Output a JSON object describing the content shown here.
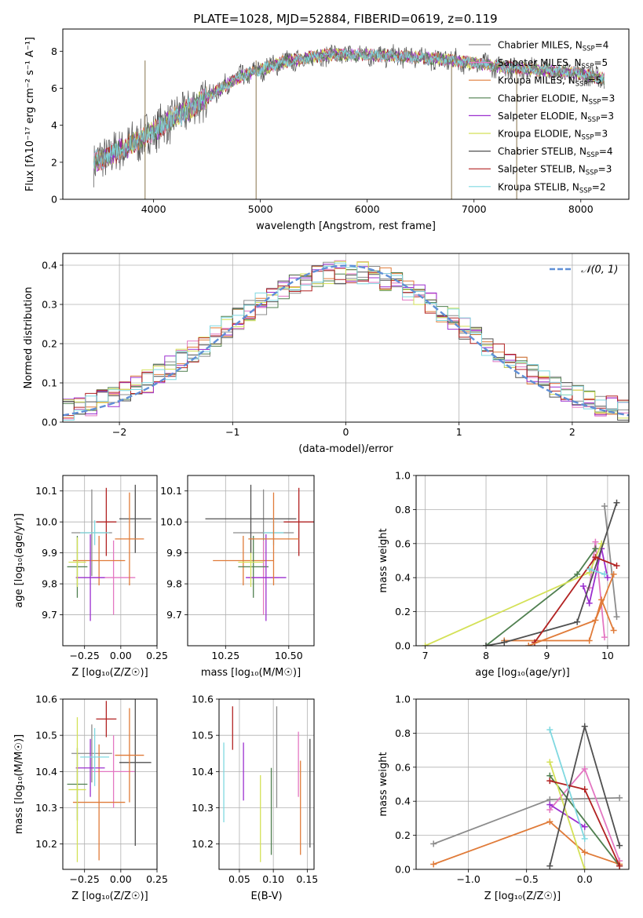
{
  "figure_title": "PLATE=1028, MJD=52884, FIBERID=0619, z=0.119",
  "models": [
    {
      "name": "Chabrier MILES",
      "nssp": "4",
      "color": "#8c8c8c"
    },
    {
      "name": "Salpeter MILES",
      "nssp": "5",
      "color": "#e377c2"
    },
    {
      "name": "Kroupa MILES",
      "nssp": "5",
      "color": "#e07b39"
    },
    {
      "name": "Chabrier ELODIE",
      "nssp": "3",
      "color": "#4f7f4f"
    },
    {
      "name": "Salpeter ELODIE",
      "nssp": "3",
      "color": "#9b2fcf"
    },
    {
      "name": "Kroupa ELODIE",
      "nssp": "3",
      "color": "#d4e157"
    },
    {
      "name": "Chabrier STELIB",
      "nssp": "4",
      "color": "#505050"
    },
    {
      "name": "Salpeter STELIB",
      "nssp": "3",
      "color": "#b22222"
    },
    {
      "name": "Kroupa STELIB",
      "nssp": "2",
      "color": "#7fd8e0"
    }
  ],
  "chart_data": [
    {
      "id": "spectrum",
      "type": "line",
      "xlabel": "wavelength [Angstrom, rest frame]",
      "ylabel": "Flux [fλ10⁻¹⁷ erg cm⁻² s⁻¹ A⁻¹]",
      "xlim": [
        3150,
        8450
      ],
      "ylim": [
        0,
        9.2
      ],
      "xticks": [
        "4000",
        "5000",
        "6000",
        "7000",
        "8000"
      ],
      "yticks": [
        "0",
        "2",
        "4",
        "6",
        "8"
      ],
      "data_xrange": [
        3440,
        8220
      ],
      "continuum_x": [
        3440,
        3600,
        3800,
        4000,
        4200,
        4500,
        4800,
        5200,
        5600,
        6000,
        6400,
        6800,
        7200,
        7600,
        8000,
        8220
      ],
      "continuum_y": [
        2.0,
        2.4,
        3.0,
        3.7,
        4.4,
        5.5,
        6.6,
        7.4,
        7.8,
        7.8,
        7.7,
        7.5,
        7.2,
        7.0,
        6.8,
        6.5
      ],
      "spikes_x": [
        3920,
        4960,
        6790,
        7400
      ]
    },
    {
      "id": "residual-histogram",
      "type": "bar",
      "xlabel": "(data-model)/error",
      "ylabel": "Normed distribution",
      "xlim": [
        -2.5,
        2.5
      ],
      "ylim": [
        0,
        0.43
      ],
      "xticks": [
        "−2",
        "−1",
        "0",
        "1",
        "2"
      ],
      "yticks": [
        "0.0",
        "0.1",
        "0.2",
        "0.3",
        "0.4"
      ],
      "bin_width": 0.1,
      "legend_label": "𝒩(0, 1)",
      "legend_position": "upper right",
      "gaussian_color": "#5f8fd6"
    },
    {
      "id": "age-vs-metallicity",
      "type": "scatter",
      "xlabel": "Z [log₁₀(Z/Z☉)]",
      "ylabel": "age  [log₁₀(age/yr)]",
      "xlim": [
        -0.4,
        0.25
      ],
      "ylim": [
        9.6,
        10.15
      ],
      "xticks": [
        "−0.25",
        "0.00",
        "0.25"
      ],
      "yticks": [
        "9.7",
        "9.8",
        "9.9",
        "10.0",
        "10.1"
      ],
      "points": [
        {
          "model": 0,
          "x": -0.2,
          "xerr": 0.14,
          "y": 9.965,
          "yerr": 0.14
        },
        {
          "model": 1,
          "x": -0.05,
          "xerr": 0.15,
          "y": 9.82,
          "yerr": 0.12
        },
        {
          "model": 2,
          "x": -0.15,
          "xerr": 0.18,
          "y": 9.875,
          "yerr": 0.08
        },
        {
          "model": 3,
          "x": -0.3,
          "xerr": 0.07,
          "y": 9.855,
          "yerr": 0.1
        },
        {
          "model": 4,
          "x": -0.21,
          "xerr": 0.1,
          "y": 9.82,
          "yerr": 0.14
        },
        {
          "model": 5,
          "x": -0.3,
          "xerr": 0.06,
          "y": 9.87,
          "yerr": 0.08
        },
        {
          "model": 6,
          "x": 0.1,
          "xerr": 0.11,
          "y": 10.01,
          "yerr": 0.11
        },
        {
          "model": 7,
          "x": -0.1,
          "xerr": 0.07,
          "y": 10.0,
          "yerr": 0.11
        },
        {
          "model": 8,
          "x": -0.18,
          "xerr": 0.1,
          "y": 9.965,
          "yerr": 0.04
        },
        {
          "model": 2,
          "x": 0.06,
          "xerr": 0.1,
          "y": 9.945,
          "yerr": 0.15
        }
      ]
    },
    {
      "id": "age-vs-mass",
      "type": "scatter",
      "xlabel": "mass [log₁₀(M/M☉)]",
      "ylabel": "",
      "xlim": [
        10.1,
        10.6
      ],
      "ylim": [
        9.6,
        10.15
      ],
      "xticks": [
        "10.25",
        "10.50"
      ],
      "yticks": [
        "9.7",
        "9.8",
        "9.9",
        "10.0",
        "10.1"
      ],
      "points": [
        {
          "model": 0,
          "x": 10.4,
          "xerr": 0.12,
          "y": 9.965,
          "yerr": 0.14
        },
        {
          "model": 1,
          "x": 10.4,
          "xerr": 0.06,
          "y": 9.82,
          "yerr": 0.12
        },
        {
          "model": 2,
          "x": 10.32,
          "xerr": 0.12,
          "y": 9.875,
          "yerr": 0.08
        },
        {
          "model": 3,
          "x": 10.36,
          "xerr": 0.06,
          "y": 9.855,
          "yerr": 0.1
        },
        {
          "model": 4,
          "x": 10.41,
          "xerr": 0.08,
          "y": 9.82,
          "yerr": 0.14
        },
        {
          "model": 5,
          "x": 10.35,
          "xerr": 0.05,
          "y": 9.87,
          "yerr": 0.08
        },
        {
          "model": 6,
          "x": 10.35,
          "xerr": 0.18,
          "y": 10.01,
          "yerr": 0.11
        },
        {
          "model": 7,
          "x": 10.54,
          "xerr": 0.06,
          "y": 10.0,
          "yerr": 0.11
        },
        {
          "model": 8,
          "x": 10.44,
          "xerr": 0.04,
          "y": 9.965,
          "yerr": 0.04
        },
        {
          "model": 2,
          "x": 10.44,
          "xerr": 0.1,
          "y": 9.945,
          "yerr": 0.15
        }
      ]
    },
    {
      "id": "mass-weight-vs-age",
      "type": "line",
      "xlabel": "age  [log₁₀(age/yr)]",
      "ylabel": "mass weight",
      "xlim": [
        6.85,
        10.35
      ],
      "ylim": [
        0,
        1.0
      ],
      "xticks": [
        "7",
        "8",
        "9",
        "10"
      ],
      "yticks": [
        "0.0",
        "0.2",
        "0.4",
        "0.6",
        "0.8",
        "1.0"
      ],
      "series": [
        {
          "model": 0,
          "x": [
            9.95,
            10.15
          ],
          "y": [
            0.82,
            0.17
          ]
        },
        {
          "model": 1,
          "x": [
            9.7,
            9.8,
            9.95
          ],
          "y": [
            0.34,
            0.61,
            0.05
          ]
        },
        {
          "model": 2,
          "x": [
            8.3,
            9.7,
            9.9,
            10.1
          ],
          "y": [
            0.03,
            0.03,
            0.27,
            0.09
          ]
        },
        {
          "model": 3,
          "x": [
            8.0,
            9.5,
            9.8
          ],
          "y": [
            0.0,
            0.42,
            0.57
          ]
        },
        {
          "model": 4,
          "x": [
            9.6,
            9.7,
            9.9,
            10.0
          ],
          "y": [
            0.35,
            0.25,
            0.57,
            0.4
          ]
        },
        {
          "model": 5,
          "x": [
            7.0,
            9.7,
            9.9
          ],
          "y": [
            0.0,
            0.43,
            0.6
          ]
        },
        {
          "model": 6,
          "x": [
            8.0,
            8.3,
            9.5,
            10.15
          ],
          "y": [
            0.0,
            0.02,
            0.14,
            0.84
          ]
        },
        {
          "model": 7,
          "x": [
            8.8,
            9.8,
            10.15
          ],
          "y": [
            0.02,
            0.52,
            0.47
          ]
        },
        {
          "model": 8,
          "x": [
            9.7,
            9.95
          ],
          "y": [
            0.45,
            0.42
          ]
        },
        {
          "model": 2,
          "x": [
            8.7,
            9.8,
            10.1
          ],
          "y": [
            0.0,
            0.15,
            0.42
          ]
        }
      ]
    },
    {
      "id": "mass-vs-metallicity",
      "type": "scatter",
      "xlabel": "Z [log₁₀(Z/Z☉)]",
      "ylabel": "mass [log₁₀(M/M☉)]",
      "xlim": [
        -0.4,
        0.25
      ],
      "ylim": [
        10.13,
        10.6
      ],
      "xticks": [
        "−0.25",
        "0.00",
        "0.25"
      ],
      "yticks": [
        "10.2",
        "10.3",
        "10.4",
        "10.5",
        "10.6"
      ],
      "points": [
        {
          "model": 0,
          "x": -0.2,
          "xerr": 0.14,
          "y": 10.45,
          "yerr": 0.08
        },
        {
          "model": 1,
          "x": -0.05,
          "xerr": 0.15,
          "y": 10.4,
          "yerr": 0.1
        },
        {
          "model": 2,
          "x": -0.15,
          "xerr": 0.18,
          "y": 10.315,
          "yerr": 0.16
        },
        {
          "model": 3,
          "x": -0.3,
          "xerr": 0.07,
          "y": 10.365,
          "yerr": 0.1
        },
        {
          "model": 4,
          "x": -0.21,
          "xerr": 0.1,
          "y": 10.41,
          "yerr": 0.08
        },
        {
          "model": 5,
          "x": -0.3,
          "xerr": 0.06,
          "y": 10.35,
          "yerr": 0.2
        },
        {
          "model": 6,
          "x": 0.1,
          "xerr": 0.11,
          "y": 10.425,
          "yerr": 0.23
        },
        {
          "model": 7,
          "x": -0.1,
          "xerr": 0.07,
          "y": 10.545,
          "yerr": 0.05
        },
        {
          "model": 8,
          "x": -0.18,
          "xerr": 0.1,
          "y": 10.44,
          "yerr": 0.08
        },
        {
          "model": 2,
          "x": 0.06,
          "xerr": 0.1,
          "y": 10.445,
          "yerr": 0.13
        }
      ]
    },
    {
      "id": "mass-vs-ebv",
      "type": "scatter",
      "xlabel": "E(B-V)",
      "ylabel": "",
      "xlim": [
        0.02,
        0.16
      ],
      "ylim": [
        10.13,
        10.6
      ],
      "xticks": [
        "0.05",
        "0.10",
        "0.15"
      ],
      "yticks": [
        "10.2",
        "10.3",
        "10.4",
        "10.5",
        "10.6"
      ],
      "points": [
        {
          "model": 8,
          "x": 0.027,
          "y": 10.37,
          "yerr": 0.11
        },
        {
          "model": 7,
          "x": 0.04,
          "y": 10.52,
          "yerr": 0.06
        },
        {
          "model": 4,
          "x": 0.056,
          "y": 10.4,
          "yerr": 0.08
        },
        {
          "model": 5,
          "x": 0.081,
          "y": 10.27,
          "yerr": 0.12
        },
        {
          "model": 3,
          "x": 0.097,
          "y": 10.29,
          "yerr": 0.12
        },
        {
          "model": 0,
          "x": 0.105,
          "y": 10.44,
          "yerr": 0.14
        },
        {
          "model": 1,
          "x": 0.137,
          "y": 10.42,
          "yerr": 0.09
        },
        {
          "model": 2,
          "x": 0.14,
          "y": 10.3,
          "yerr": 0.13
        },
        {
          "model": 6,
          "x": 0.154,
          "y": 10.34,
          "yerr": 0.15
        }
      ]
    },
    {
      "id": "mass-weight-vs-metallicity",
      "type": "line",
      "xlabel": "Z [log₁₀(Z/Z☉)]",
      "ylabel": "mass weight",
      "xlim": [
        -1.45,
        0.38
      ],
      "ylim": [
        0,
        1.0
      ],
      "xticks": [
        "−1.0",
        "−0.5",
        "0.0"
      ],
      "yticks": [
        "0.0",
        "0.2",
        "0.4",
        "0.6",
        "0.8",
        "1.0"
      ],
      "series": [
        {
          "model": 0,
          "x": [
            -1.3,
            -0.3,
            0.3
          ],
          "y": [
            0.15,
            0.41,
            0.42
          ]
        },
        {
          "model": 1,
          "x": [
            -0.3,
            0.0,
            0.3
          ],
          "y": [
            0.35,
            0.59,
            0.05
          ]
        },
        {
          "model": 2,
          "x": [
            -1.3,
            -0.3,
            0.0,
            0.3
          ],
          "y": [
            0.03,
            0.28,
            0.1,
            0.03
          ]
        },
        {
          "model": 3,
          "x": [
            -0.3,
            0.3
          ],
          "y": [
            0.55,
            0.02
          ]
        },
        {
          "model": 4,
          "x": [
            -0.3,
            0.0
          ],
          "y": [
            0.38,
            0.25
          ]
        },
        {
          "model": 5,
          "x": [
            -0.3,
            0.0
          ],
          "y": [
            0.63,
            0.0
          ]
        },
        {
          "model": 6,
          "x": [
            -0.3,
            0.0,
            0.3
          ],
          "y": [
            0.02,
            0.84,
            0.14
          ]
        },
        {
          "model": 7,
          "x": [
            -0.3,
            0.0,
            0.3
          ],
          "y": [
            0.52,
            0.47,
            0.02
          ]
        },
        {
          "model": 8,
          "x": [
            -0.3,
            0.0
          ],
          "y": [
            0.82,
            0.18
          ]
        }
      ]
    }
  ]
}
